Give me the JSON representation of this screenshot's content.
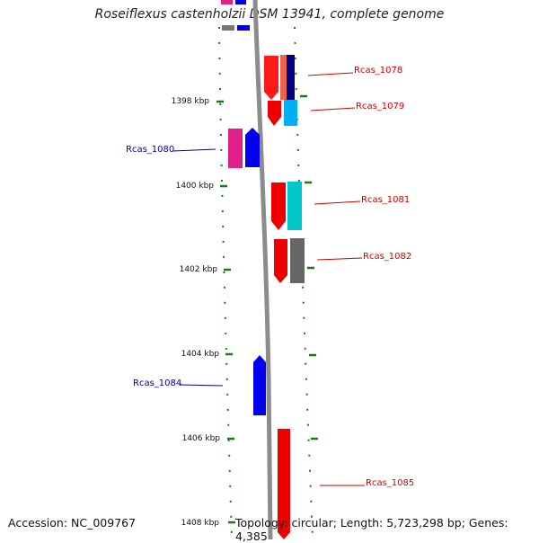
{
  "title": "Roseiflexus castenholzii DSM 13941, complete genome",
  "footer": {
    "accession": "Accession: NC_009767",
    "info": "Topology: circular; Length: 5,723,298 bp; Genes: 4,385"
  },
  "scale_labels": [
    "1398 kbp",
    "1400 kbp",
    "1402 kbp",
    "1404 kbp",
    "1406 kbp",
    "1408 kbp"
  ],
  "gene_labels": [
    {
      "text": "Rcas_1078",
      "color": "#cc0000"
    },
    {
      "text": "Rcas_1079",
      "color": "#cc0000"
    },
    {
      "text": "Rcas_1080",
      "color": "#000099"
    },
    {
      "text": "Rcas_1081",
      "color": "#cc0000"
    },
    {
      "text": "Rcas_1082",
      "color": "#cc0000"
    },
    {
      "text": "Rcas_1084",
      "color": "#000099"
    },
    {
      "text": "Rcas_1085",
      "color": "#cc0000"
    }
  ],
  "colors": {
    "backbone": "#888888",
    "tick": "#1a7a1a",
    "forward_strand": "#ff0000",
    "reverse_strand": "#0000ff",
    "magenta": "#e0208a",
    "navy": "#000080",
    "salmon": "#f06050",
    "sky": "#00b0f0",
    "teal": "#00c8c8",
    "grey": "#666666"
  }
}
